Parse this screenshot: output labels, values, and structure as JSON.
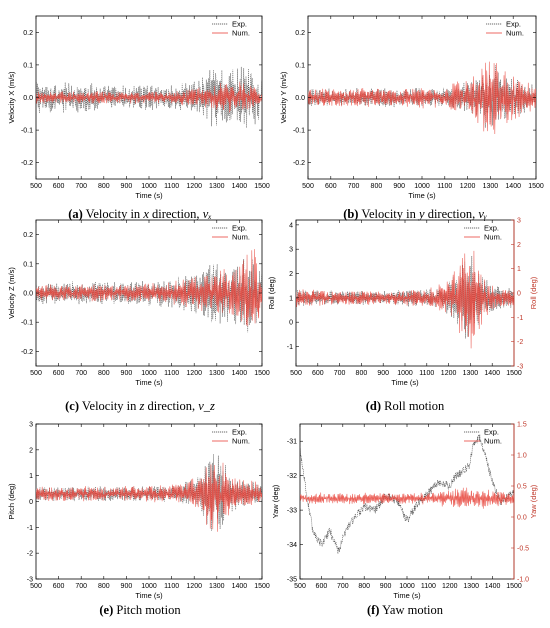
{
  "colors": {
    "exp": "#3a3a3a",
    "num": "#e8453c",
    "axis": "#000000",
    "secondary_axis": "#c0392b"
  },
  "chart_data": [
    {
      "id": "a",
      "type": "line",
      "xlabel": "Time (s)",
      "ylabel": "Velocity X (m/s)",
      "xlim": [
        500,
        1500
      ],
      "ylim": [
        -0.25,
        0.25
      ],
      "xticks": [
        500,
        600,
        700,
        800,
        900,
        1000,
        1100,
        1200,
        1300,
        1400,
        1500
      ],
      "yticks": [
        -0.2,
        -0.1,
        0.0,
        0.1,
        0.2
      ],
      "ytick_labels": [
        "-0.2",
        "-0.1",
        "0.0",
        "0.1",
        "0.2"
      ],
      "legend": [
        "Exp.",
        "Num."
      ],
      "legend_position": "top-right",
      "caption_label": "(a)",
      "caption_text": " Velocity in ",
      "caption_var": "x",
      "caption_rest": " direction, ",
      "caption_sym": "vₓ",
      "series": [
        {
          "name": "Exp.",
          "baseline": 0.0,
          "envelope": [
            [
              500,
              0.05
            ],
            [
              600,
              0.05
            ],
            [
              700,
              0.05
            ],
            [
              800,
              0.04
            ],
            [
              900,
              0.04
            ],
            [
              1000,
              0.04
            ],
            [
              1100,
              0.04
            ],
            [
              1200,
              0.05
            ],
            [
              1250,
              0.07
            ],
            [
              1300,
              0.11
            ],
            [
              1350,
              0.09
            ],
            [
              1400,
              0.11
            ],
            [
              1450,
              0.1
            ],
            [
              1500,
              0.06
            ]
          ]
        },
        {
          "name": "Num.",
          "baseline": 0.0,
          "envelope": [
            [
              500,
              0.02
            ],
            [
              700,
              0.02
            ],
            [
              900,
              0.02
            ],
            [
              1100,
              0.02
            ],
            [
              1200,
              0.03
            ],
            [
              1300,
              0.05
            ],
            [
              1400,
              0.05
            ],
            [
              1500,
              0.03
            ]
          ]
        }
      ]
    },
    {
      "id": "b",
      "type": "line",
      "xlabel": "Time (s)",
      "ylabel": "Velocity Y (m/s)",
      "xlim": [
        500,
        1500
      ],
      "ylim": [
        -0.25,
        0.25
      ],
      "xticks": [
        500,
        600,
        700,
        800,
        900,
        1000,
        1100,
        1200,
        1300,
        1400,
        1500
      ],
      "yticks": [
        -0.2,
        -0.1,
        0.0,
        0.1,
        0.2
      ],
      "ytick_labels": [
        "-0.2",
        "-0.1",
        "0.0",
        "0.1",
        "0.2"
      ],
      "legend": [
        "Exp.",
        "Num."
      ],
      "legend_position": "top-right",
      "caption_label": "(b)",
      "caption_text": " Velocity in ",
      "caption_var": "y",
      "caption_rest": " direction, ",
      "caption_sym": "vᵧ",
      "series": [
        {
          "name": "Exp.",
          "baseline": 0.0,
          "envelope": [
            [
              500,
              0.03
            ],
            [
              700,
              0.03
            ],
            [
              900,
              0.03
            ],
            [
              1100,
              0.03
            ],
            [
              1200,
              0.05
            ],
            [
              1250,
              0.07
            ],
            [
              1300,
              0.12
            ],
            [
              1350,
              0.08
            ],
            [
              1400,
              0.07
            ],
            [
              1500,
              0.04
            ]
          ]
        },
        {
          "name": "Num.",
          "baseline": 0.0,
          "envelope": [
            [
              500,
              0.03
            ],
            [
              700,
              0.03
            ],
            [
              900,
              0.03
            ],
            [
              1100,
              0.04
            ],
            [
              1200,
              0.06
            ],
            [
              1300,
              0.13
            ],
            [
              1350,
              0.09
            ],
            [
              1400,
              0.07
            ],
            [
              1500,
              0.04
            ]
          ]
        }
      ]
    },
    {
      "id": "c",
      "type": "line",
      "xlabel": "Time (s)",
      "ylabel": "Velocity Z (m/s)",
      "xlim": [
        500,
        1500
      ],
      "ylim": [
        -0.25,
        0.25
      ],
      "xticks": [
        500,
        600,
        700,
        800,
        900,
        1000,
        1100,
        1200,
        1300,
        1400,
        1500
      ],
      "yticks": [
        -0.2,
        -0.1,
        0.0,
        0.1,
        0.2
      ],
      "ytick_labels": [
        "-0.2",
        "-0.1",
        "0.0",
        "0.1",
        "0.2"
      ],
      "legend": [
        "Exp.",
        "Num."
      ],
      "legend_position": "top-right",
      "caption_label": "(c)",
      "caption_text": " Velocity in ",
      "caption_var": "z",
      "caption_rest": " direction, ",
      "caption_sym": "v_z",
      "series": [
        {
          "name": "Exp.",
          "baseline": 0.0,
          "envelope": [
            [
              500,
              0.04
            ],
            [
              700,
              0.04
            ],
            [
              900,
              0.04
            ],
            [
              1100,
              0.05
            ],
            [
              1200,
              0.07
            ],
            [
              1250,
              0.1
            ],
            [
              1300,
              0.11
            ],
            [
              1350,
              0.1
            ],
            [
              1400,
              0.12
            ],
            [
              1450,
              0.16
            ],
            [
              1500,
              0.08
            ]
          ]
        },
        {
          "name": "Num.",
          "baseline": 0.0,
          "envelope": [
            [
              500,
              0.03
            ],
            [
              700,
              0.03
            ],
            [
              900,
              0.03
            ],
            [
              1100,
              0.04
            ],
            [
              1200,
              0.06
            ],
            [
              1300,
              0.08
            ],
            [
              1400,
              0.1
            ],
            [
              1450,
              0.18
            ],
            [
              1500,
              0.1
            ]
          ]
        }
      ]
    },
    {
      "id": "d",
      "type": "line",
      "xlabel": "Time (s)",
      "ylabel": "Roll (deg)",
      "ylabel_right": "Roll (deg)",
      "xlim": [
        500,
        1500
      ],
      "ylim": [
        -1.8,
        4.2
      ],
      "ylim_right": [
        -3,
        3
      ],
      "xticks": [
        500,
        600,
        700,
        800,
        900,
        1000,
        1100,
        1200,
        1300,
        1400,
        1500
      ],
      "yticks": [
        -1,
        0,
        1,
        2,
        3,
        4
      ],
      "ytick_labels": [
        "-1",
        "0",
        "1",
        "2",
        "3",
        "4"
      ],
      "yticks_right": [
        -3,
        -2,
        -1,
        0,
        1,
        2,
        3
      ],
      "ytick_labels_right": [
        "-3",
        "-2",
        "-1",
        "0",
        "1",
        "2",
        "3"
      ],
      "legend": [
        "Exp.",
        "Num."
      ],
      "legend_position": "top-right",
      "caption_label": "(d)",
      "caption_text": " Roll motion",
      "series": [
        {
          "name": "Exp.",
          "baseline": 1.0,
          "envelope": [
            [
              500,
              0.4
            ],
            [
              700,
              0.3
            ],
            [
              900,
              0.3
            ],
            [
              1100,
              0.4
            ],
            [
              1200,
              0.7
            ],
            [
              1250,
              1.5
            ],
            [
              1300,
              2.0
            ],
            [
              1350,
              1.0
            ],
            [
              1400,
              0.6
            ],
            [
              1500,
              0.4
            ]
          ]
        },
        {
          "name": "Num.",
          "baseline": 1.0,
          "envelope": [
            [
              500,
              0.4
            ],
            [
              700,
              0.3
            ],
            [
              900,
              0.3
            ],
            [
              1100,
              0.4
            ],
            [
              1200,
              0.8
            ],
            [
              1250,
              1.6
            ],
            [
              1300,
              2.5
            ],
            [
              1350,
              1.2
            ],
            [
              1400,
              0.6
            ],
            [
              1500,
              0.4
            ]
          ]
        }
      ]
    },
    {
      "id": "e",
      "type": "line",
      "xlabel": "Time (s)",
      "ylabel": "Pitch (deg)",
      "xlim": [
        500,
        1500
      ],
      "ylim": [
        -3,
        3
      ],
      "xticks": [
        500,
        600,
        700,
        800,
        900,
        1000,
        1100,
        1200,
        1300,
        1400,
        1500
      ],
      "yticks": [
        -3,
        -2,
        -1,
        0,
        1,
        2,
        3
      ],
      "ytick_labels": [
        "-3",
        "-2",
        "-1",
        "0",
        "1",
        "2",
        "3"
      ],
      "legend": [
        "Exp.",
        "Num."
      ],
      "legend_position": "top-right",
      "caption_label": "(e)",
      "caption_text": " Pitch motion",
      "series": [
        {
          "name": "Exp.",
          "baseline": 0.3,
          "envelope": [
            [
              500,
              0.3
            ],
            [
              700,
              0.3
            ],
            [
              900,
              0.3
            ],
            [
              1100,
              0.35
            ],
            [
              1200,
              0.6
            ],
            [
              1250,
              1.2
            ],
            [
              1300,
              1.8
            ],
            [
              1350,
              1.0
            ],
            [
              1400,
              0.6
            ],
            [
              1500,
              0.4
            ]
          ]
        },
        {
          "name": "Num.",
          "baseline": 0.3,
          "envelope": [
            [
              500,
              0.3
            ],
            [
              700,
              0.3
            ],
            [
              900,
              0.3
            ],
            [
              1100,
              0.35
            ],
            [
              1200,
              0.7
            ],
            [
              1250,
              1.3
            ],
            [
              1300,
              1.6
            ],
            [
              1350,
              1.0
            ],
            [
              1400,
              0.7
            ],
            [
              1500,
              0.4
            ]
          ]
        }
      ]
    },
    {
      "id": "f",
      "type": "line",
      "xlabel": "Time (s)",
      "ylabel": "Yaw (deg)",
      "ylabel_right": "Yaw (deg)",
      "xlim": [
        500,
        1500
      ],
      "ylim": [
        -35,
        -30.5
      ],
      "ylim_right": [
        -1.0,
        1.5
      ],
      "xticks": [
        500,
        600,
        700,
        800,
        900,
        1000,
        1100,
        1200,
        1300,
        1400,
        1500
      ],
      "yticks": [
        -35,
        -34,
        -33,
        -32,
        -31
      ],
      "ytick_labels": [
        "-35",
        "-34",
        "-33",
        "-32",
        "-31"
      ],
      "yticks_right": [
        -1.0,
        -0.5,
        0.0,
        0.5,
        1.0,
        1.5
      ],
      "ytick_labels_right": [
        "-1.0",
        "-0.5",
        "0.0",
        "0.5",
        "1.0",
        "1.5"
      ],
      "legend": [
        "Exp.",
        "Num."
      ],
      "legend_position": "top-right",
      "caption_label": "(f)",
      "caption_text": " Yaw motion",
      "series": [
        {
          "name": "Exp.",
          "path": [
            [
              500,
              -31.2
            ],
            [
              530,
              -32.5
            ],
            [
              560,
              -33.6
            ],
            [
              600,
              -34.0
            ],
            [
              640,
              -33.6
            ],
            [
              680,
              -34.2
            ],
            [
              720,
              -33.5
            ],
            [
              760,
              -33.2
            ],
            [
              800,
              -32.9
            ],
            [
              850,
              -33.0
            ],
            [
              900,
              -32.6
            ],
            [
              950,
              -32.7
            ],
            [
              1000,
              -33.3
            ],
            [
              1050,
              -32.8
            ],
            [
              1100,
              -32.5
            ],
            [
              1150,
              -32.2
            ],
            [
              1200,
              -32.3
            ],
            [
              1230,
              -32.0
            ],
            [
              1260,
              -31.9
            ],
            [
              1290,
              -31.7
            ],
            [
              1310,
              -31.1
            ],
            [
              1340,
              -30.9
            ],
            [
              1370,
              -31.5
            ],
            [
              1400,
              -32.2
            ],
            [
              1440,
              -32.8
            ],
            [
              1470,
              -32.6
            ],
            [
              1500,
              -32.5
            ]
          ],
          "noise": 0.12
        },
        {
          "name": "Num.",
          "axis": "right",
          "baseline": 0.3,
          "envelope": [
            [
              500,
              0.1
            ],
            [
              700,
              0.1
            ],
            [
              900,
              0.1
            ],
            [
              1100,
              0.1
            ],
            [
              1200,
              0.15
            ],
            [
              1300,
              0.2
            ],
            [
              1400,
              0.15
            ],
            [
              1500,
              0.1
            ]
          ]
        }
      ]
    }
  ]
}
